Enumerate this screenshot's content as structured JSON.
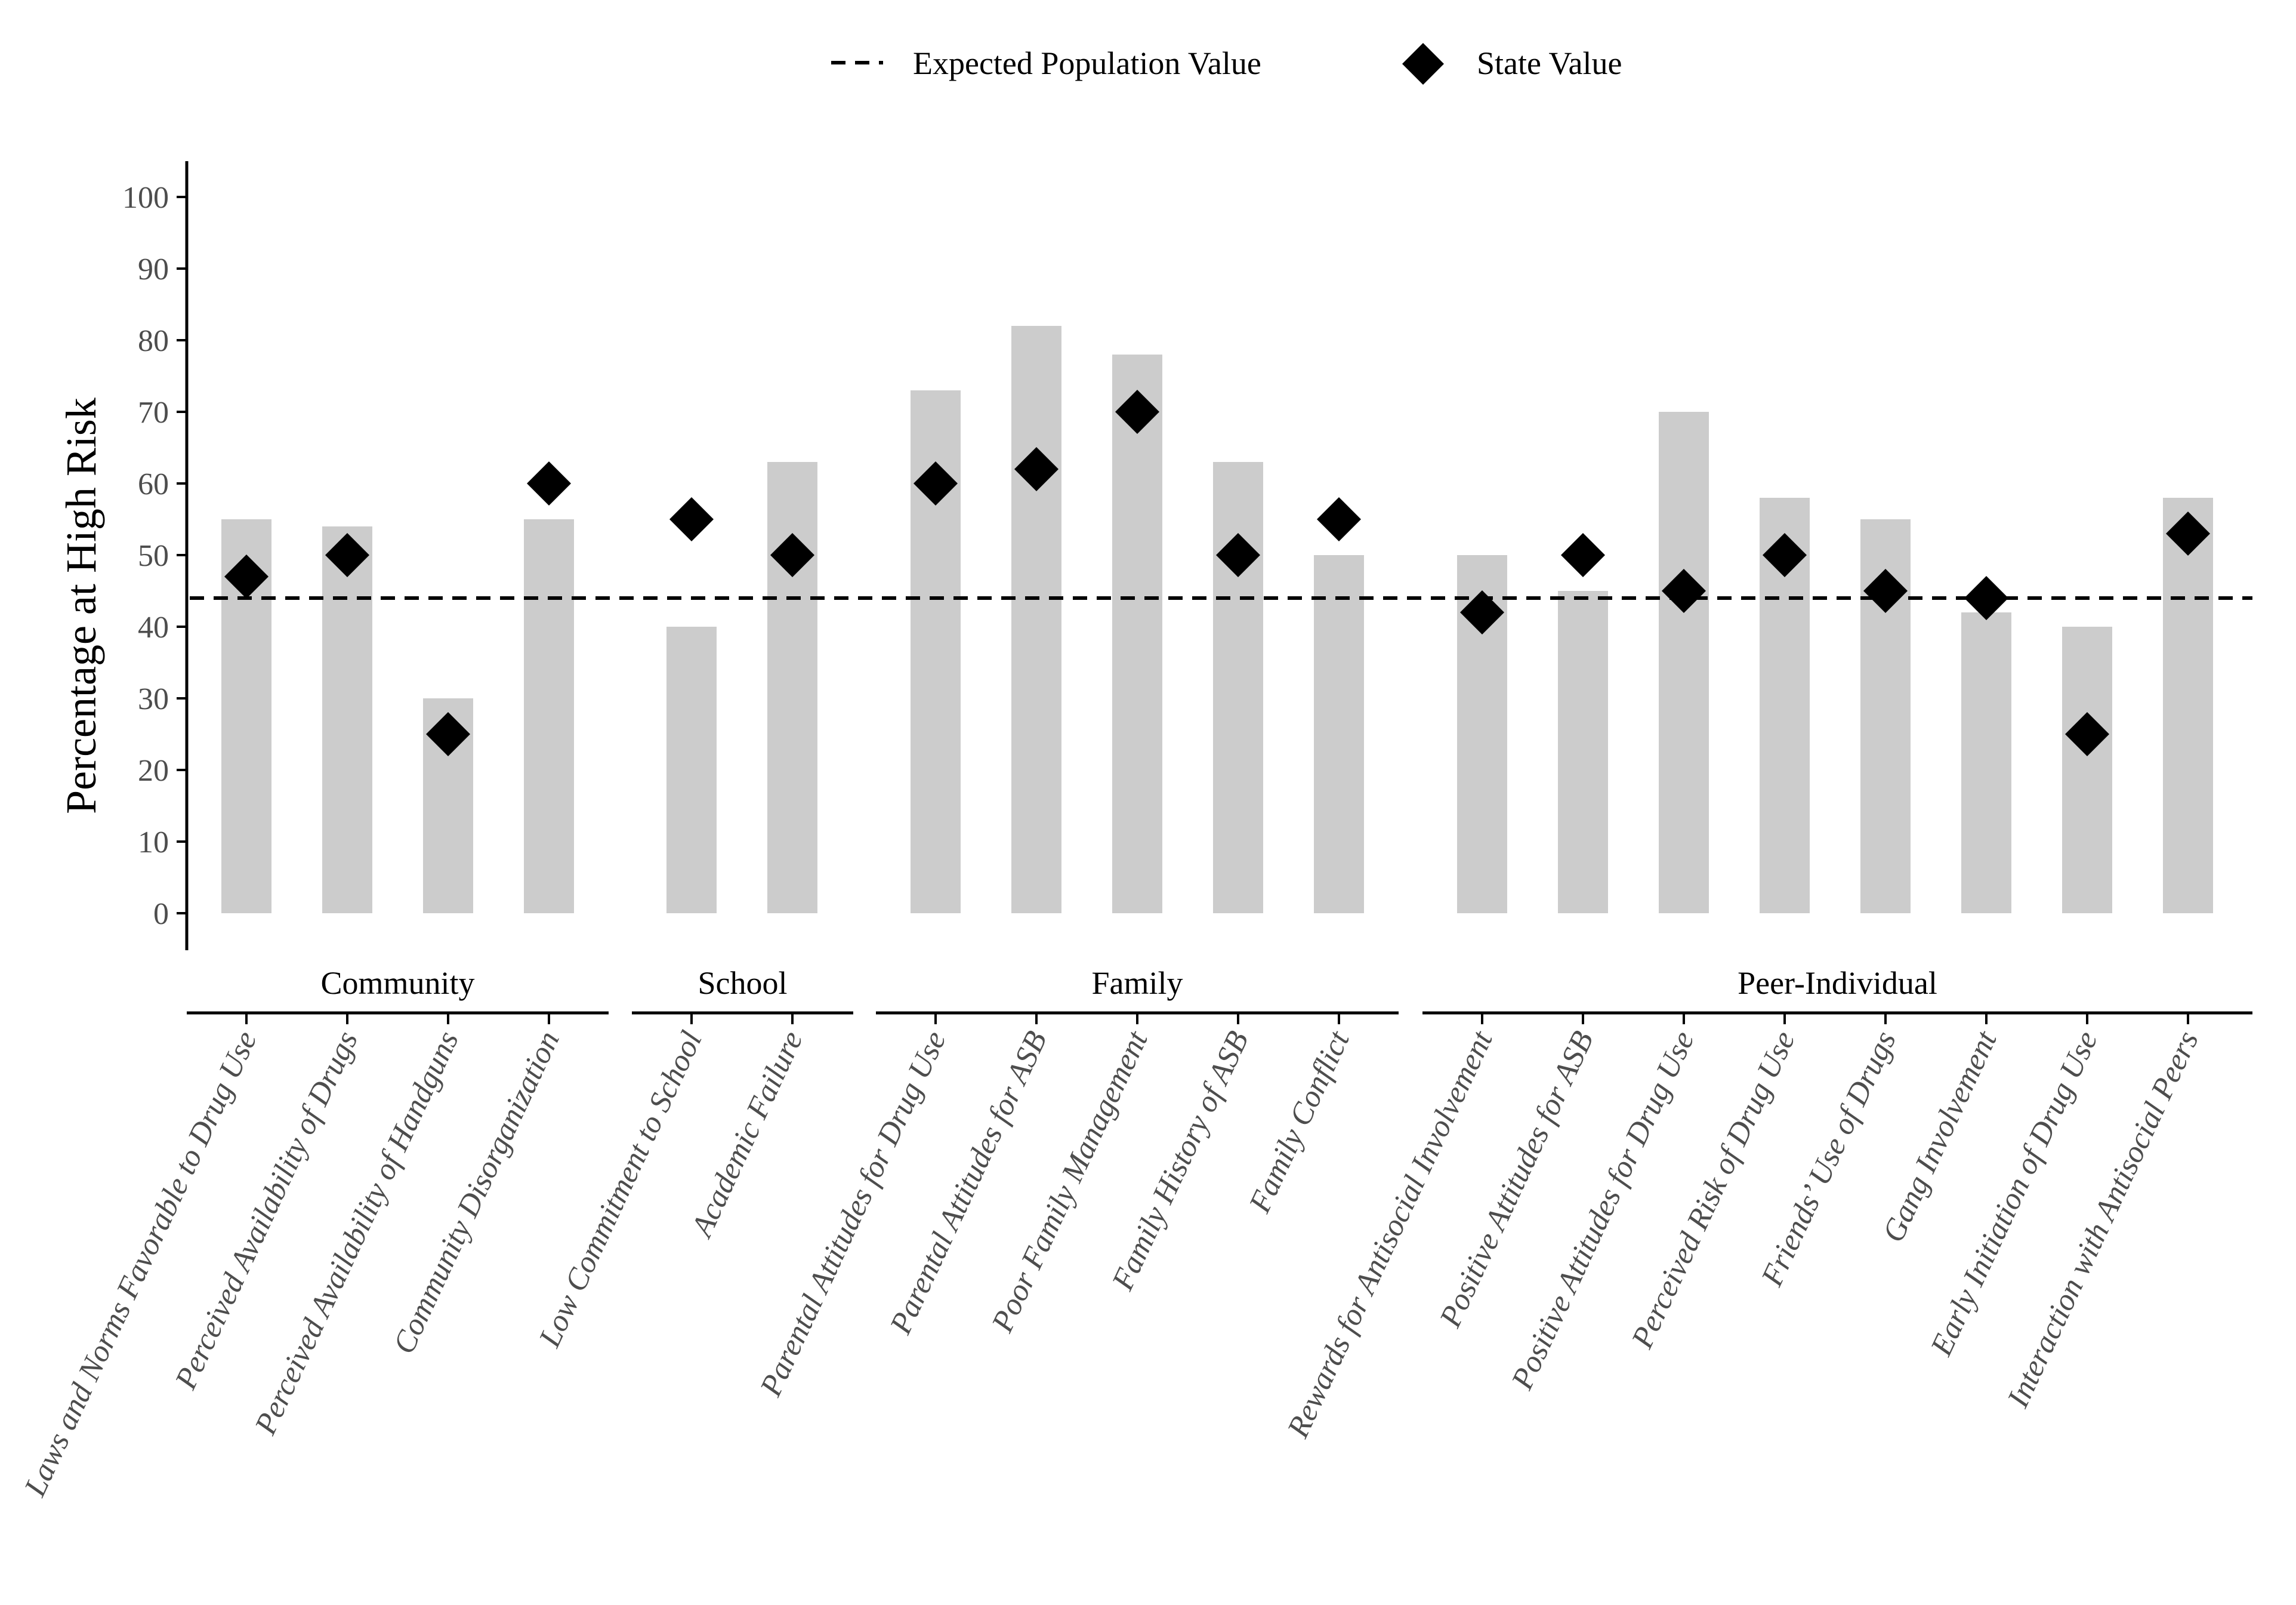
{
  "chart_data": {
    "type": "bar",
    "title": "",
    "xlabel": "",
    "ylabel": "Percentage at High Risk",
    "ylim": [
      0,
      100
    ],
    "yticks": [
      0,
      10,
      20,
      30,
      40,
      50,
      60,
      70,
      80,
      90,
      100
    ],
    "grid": false,
    "legend_position": "top",
    "legend": {
      "line_label": "Expected Population Value",
      "marker_label": "State Value"
    },
    "reference_line": {
      "name": "Expected Population Value",
      "value": 44
    },
    "groups": [
      {
        "name": "Community",
        "categories": [
          "Laws and Norms Favorable to Drug Use",
          "Perceived Availability of Drugs",
          "Perceived Availability of Handguns",
          "Community Disorganization"
        ]
      },
      {
        "name": "School",
        "categories": [
          "Low Commitment to School",
          "Academic Failure"
        ]
      },
      {
        "name": "Family",
        "categories": [
          "Parental Attitudes for Drug Use",
          "Parental Attitudes for ASB",
          "Poor Family Management",
          "Family History of ASB",
          "Family Conflict"
        ]
      },
      {
        "name": "Peer-Individual",
        "categories": [
          "Rewards for Antisocial Involvement",
          "Positive Attitudes for ASB",
          "Positive Attitudes for Drug Use",
          "Perceived Risk of Drug Use",
          "Friends’ Use of Drugs",
          "Gang Involvement",
          "Early Initiation of Drug Use",
          "Interaction with Antisocial Peers"
        ]
      }
    ],
    "categories": [
      "Laws and Norms Favorable to Drug Use",
      "Perceived Availability of Drugs",
      "Perceived Availability of Handguns",
      "Community Disorganization",
      "Low Commitment to School",
      "Academic Failure",
      "Parental Attitudes for Drug Use",
      "Parental Attitudes for ASB",
      "Poor Family Management",
      "Family History of ASB",
      "Family Conflict",
      "Rewards for Antisocial Involvement",
      "Positive Attitudes for ASB",
      "Positive Attitudes for Drug Use",
      "Perceived Risk of Drug Use",
      "Friends’ Use of Drugs",
      "Gang Involvement",
      "Early Initiation of Drug Use",
      "Interaction with Antisocial Peers"
    ],
    "series": [
      {
        "name": "Bar value",
        "type": "bar",
        "values": [
          55,
          54,
          30,
          55,
          40,
          63,
          73,
          82,
          78,
          63,
          50,
          50,
          45,
          70,
          58,
          55,
          42,
          40,
          58
        ]
      },
      {
        "name": "State Value",
        "type": "scatter",
        "values": [
          47,
          50,
          25,
          60,
          55,
          50,
          60,
          62,
          70,
          50,
          55,
          42,
          50,
          45,
          50,
          45,
          44,
          25,
          53
        ]
      }
    ],
    "colors": {
      "bar": "#cccccc",
      "marker": "#000000",
      "line": "#000000"
    }
  }
}
